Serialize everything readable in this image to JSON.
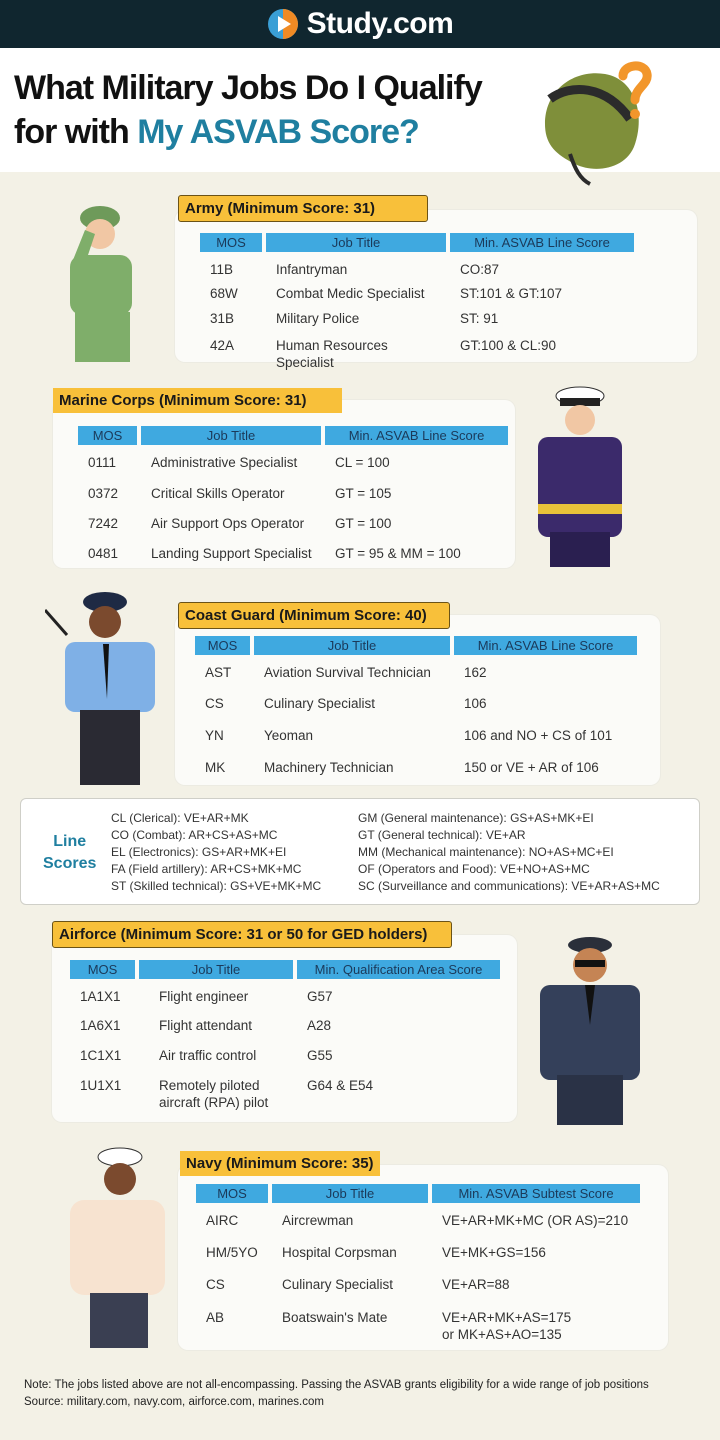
{
  "header": {
    "brand": "Study.com",
    "logo_icon": "play-logo-icon"
  },
  "title": {
    "line1": "What Military Jobs Do I Qualify",
    "line2_plain": "for with ",
    "line2_accent": "My ASVAB Score?"
  },
  "colors": {
    "header_bg": "#10262f",
    "accent": "#1f7fa0",
    "label_bg": "#f8c03a",
    "table_header": "#3fa9e0",
    "background": "#f3f1e6"
  },
  "sections": {
    "army": {
      "label": "Army (Minimum Score: 31)",
      "headers": [
        "MOS",
        "Job Title",
        "Min. ASVAB Line Score"
      ],
      "rows": [
        [
          "11B",
          "Infantryman",
          "CO:87"
        ],
        [
          "68W",
          "Combat Medic Specialist",
          "ST:101 & GT:107"
        ],
        [
          "31B",
          "Military Police",
          "ST: 91"
        ],
        [
          "42A",
          "Human Resources Specialist",
          "GT:100 & CL:90"
        ]
      ]
    },
    "marines": {
      "label": "Marine Corps (Minimum Score: 31)",
      "headers": [
        "MOS",
        "Job Title",
        "Min. ASVAB Line Score"
      ],
      "rows": [
        [
          "0111",
          "Administrative Specialist",
          "CL = 100"
        ],
        [
          "0372",
          "Critical Skills Operator",
          "GT = 105"
        ],
        [
          "7242",
          "Air Support Ops Operator",
          "GT = 100"
        ],
        [
          "0481",
          "Landing Support Specialist",
          "GT = 95 & MM = 100"
        ]
      ]
    },
    "coastguard": {
      "label": "Coast Guard (Minimum Score: 40)",
      "headers": [
        "MOS",
        "Job Title",
        "Min. ASVAB Line Score"
      ],
      "rows": [
        [
          "AST",
          "Aviation Survival Technician",
          "162"
        ],
        [
          "CS",
          "Culinary Specialist",
          "106"
        ],
        [
          "YN",
          "Yeoman",
          "106 and NO + CS of 101"
        ],
        [
          "MK",
          "Machinery Technician",
          "150 or VE + AR of 106"
        ]
      ]
    },
    "airforce": {
      "label": "Airforce (Minimum Score: 31 or 50 for GED holders)",
      "headers": [
        "MOS",
        "Job Title",
        "Min. Qualification Area Score"
      ],
      "rows": [
        [
          "1A1X1",
          "Flight engineer",
          "G57"
        ],
        [
          "1A6X1",
          "Flight attendant",
          "A28"
        ],
        [
          "1C1X1",
          "Air traffic control",
          "G55"
        ],
        [
          "1U1X1",
          "Remotely piloted\naircraft (RPA) pilot",
          "G64 & E54"
        ]
      ]
    },
    "navy": {
      "label": "Navy (Minimum Score: 35)",
      "headers": [
        "MOS",
        "Job Title",
        "Min. ASVAB Subtest Score"
      ],
      "rows": [
        [
          "AIRC",
          "Aircrewman",
          "VE+AR+MK+MC (OR AS)=210"
        ],
        [
          "HM/5YO",
          "Hospital Corpsman",
          "VE+MK+GS=156"
        ],
        [
          "CS",
          "Culinary Specialist",
          "VE+AR=88"
        ],
        [
          "AB",
          "Boatswain's Mate",
          "VE+AR+MK+AS=175\nor MK+AS+AO=135"
        ]
      ]
    }
  },
  "line_scores": {
    "title_line1": "Line",
    "title_line2": "Scores",
    "left": [
      "CL (Clerical): VE+AR+MK",
      "CO (Combat): AR+CS+AS+MC",
      "EL (Electronics): GS+AR+MK+EI",
      "FA (Field artillery): AR+CS+MK+MC",
      "ST (Skilled technical): GS+VE+MK+MC"
    ],
    "right": [
      "GM (General maintenance): GS+AS+MK+EI",
      "GT (General technical): VE+AR",
      "MM (Mechanical maintenance): NO+AS+MC+EI",
      "OF (Operators and Food): VE+NO+AS+MC",
      "SC (Surveillance and communications): VE+AR+AS+MC"
    ]
  },
  "footer": {
    "note": "Note: The jobs listed above are not all-encompassing. Passing the ASVAB grants eligibility for a wide range of job positions",
    "source": "Source: military.com, navy.com, airforce.com, marines.com"
  }
}
